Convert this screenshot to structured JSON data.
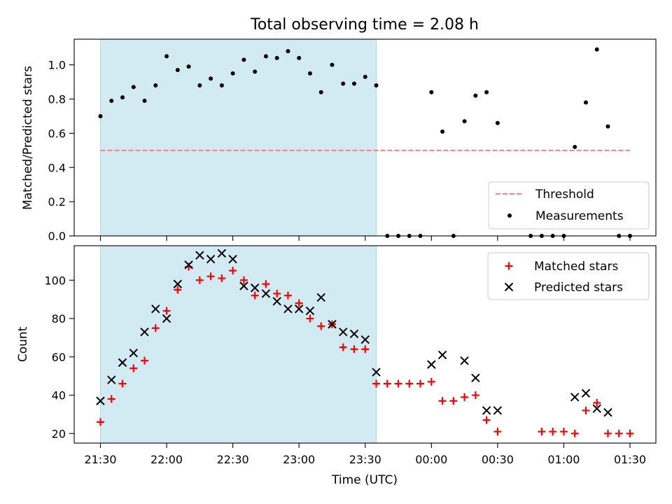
{
  "figure": {
    "title": "Total observing time = 2.08 h",
    "shade_color": "#add8e6",
    "shaded_interval": [
      "21:30",
      "23:35"
    ]
  },
  "chart_data": [
    {
      "type": "scatter",
      "panel": "top",
      "ylabel": "Matched/Predicted stars",
      "ylim": [
        0,
        1.15
      ],
      "yticks": [
        0.0,
        0.2,
        0.4,
        0.6,
        0.8,
        1.0
      ],
      "ytick_labels": [
        "0.0",
        "0.2",
        "0.4",
        "0.6",
        "0.8",
        "1.0"
      ],
      "legend_position": "lower-right",
      "threshold": {
        "name": "Threshold",
        "value": 0.5,
        "x_range": [
          "21:30",
          "01:30"
        ],
        "color": "#ff7f7f",
        "style": "dashed"
      },
      "series": [
        {
          "name": "Measurements",
          "color": "#000000",
          "marker": "dot",
          "x": [
            "21:30",
            "21:35",
            "21:40",
            "21:45",
            "21:50",
            "21:55",
            "22:00",
            "22:05",
            "22:10",
            "22:15",
            "22:20",
            "22:25",
            "22:30",
            "22:35",
            "22:40",
            "22:45",
            "22:50",
            "22:55",
            "23:00",
            "23:05",
            "23:10",
            "23:15",
            "23:20",
            "23:25",
            "23:30",
            "23:35",
            "23:40",
            "23:45",
            "23:50",
            "23:55",
            "00:00",
            "00:05",
            "00:10",
            "00:15",
            "00:20",
            "00:25",
            "00:30",
            "00:35",
            "00:40",
            "00:45",
            "00:50",
            "00:55",
            "01:00",
            "01:05",
            "01:10",
            "01:15",
            "01:20",
            "01:25",
            "01:30"
          ],
          "y": [
            0.7,
            0.79,
            0.81,
            0.87,
            0.79,
            0.88,
            1.05,
            0.97,
            0.99,
            0.88,
            0.92,
            0.88,
            0.95,
            1.03,
            0.96,
            1.05,
            1.04,
            1.08,
            1.04,
            0.95,
            0.84,
            1.0,
            0.89,
            0.89,
            0.93,
            0.88,
            0.0,
            0.0,
            0.0,
            0.0,
            0.84,
            0.61,
            0.0,
            0.67,
            0.82,
            0.84,
            0.66,
            null,
            null,
            0.0,
            0.0,
            0.0,
            0.0,
            0.52,
            0.78,
            1.09,
            0.64,
            0.0,
            0.0
          ]
        }
      ]
    },
    {
      "type": "scatter",
      "panel": "bottom",
      "xlabel": "Time (UTC)",
      "ylabel": "Count",
      "ylim": [
        15,
        118
      ],
      "yticks": [
        20,
        40,
        60,
        80,
        100
      ],
      "ytick_labels": [
        "20",
        "40",
        "60",
        "80",
        "100"
      ],
      "xticks": [
        "21:30",
        "22:00",
        "22:30",
        "23:00",
        "23:30",
        "00:00",
        "00:30",
        "01:00",
        "01:30"
      ],
      "legend_position": "upper-right",
      "series": [
        {
          "name": "Matched stars",
          "color": "#ff0000",
          "marker": "plus",
          "x": [
            "21:30",
            "21:35",
            "21:40",
            "21:45",
            "21:50",
            "21:55",
            "22:00",
            "22:05",
            "22:10",
            "22:15",
            "22:20",
            "22:25",
            "22:30",
            "22:35",
            "22:40",
            "22:45",
            "22:50",
            "22:55",
            "23:00",
            "23:05",
            "23:10",
            "23:15",
            "23:20",
            "23:25",
            "23:30",
            "23:35",
            "23:40",
            "23:45",
            "23:50",
            "23:55",
            "00:00",
            "00:05",
            "00:10",
            "00:15",
            "00:20",
            "00:25",
            "00:30",
            "00:50",
            "00:55",
            "01:00",
            "01:05",
            "01:10",
            "01:15",
            "01:20",
            "01:25",
            "01:30"
          ],
          "y": [
            26,
            38,
            46,
            54,
            58,
            75,
            84,
            95,
            107,
            100,
            102,
            101,
            105,
            100,
            92,
            98,
            93,
            92,
            88,
            80,
            76,
            77,
            65,
            64,
            64,
            46,
            46,
            46,
            46,
            46,
            47,
            37,
            37,
            39,
            40,
            27,
            21,
            21,
            21,
            21,
            20,
            32,
            36,
            20,
            20,
            20
          ]
        },
        {
          "name": "Predicted stars",
          "color": "#000000",
          "marker": "x",
          "x": [
            "21:30",
            "21:35",
            "21:40",
            "21:45",
            "21:50",
            "21:55",
            "22:00",
            "22:05",
            "22:10",
            "22:15",
            "22:20",
            "22:25",
            "22:30",
            "22:35",
            "22:40",
            "22:45",
            "22:50",
            "22:55",
            "23:00",
            "23:05",
            "23:10",
            "23:15",
            "23:20",
            "23:25",
            "23:30",
            "23:35",
            "00:00",
            "00:05",
            "00:15",
            "00:20",
            "00:25",
            "00:30",
            "01:05",
            "01:10",
            "01:15",
            "01:20"
          ],
          "y": [
            37,
            48,
            57,
            62,
            73,
            85,
            80,
            98,
            108,
            113,
            111,
            114,
            111,
            97,
            96,
            93,
            89,
            85,
            85,
            84,
            91,
            77,
            73,
            72,
            69,
            52,
            56,
            61,
            58,
            49,
            32,
            32,
            39,
            41,
            33,
            31
          ]
        }
      ]
    }
  ]
}
